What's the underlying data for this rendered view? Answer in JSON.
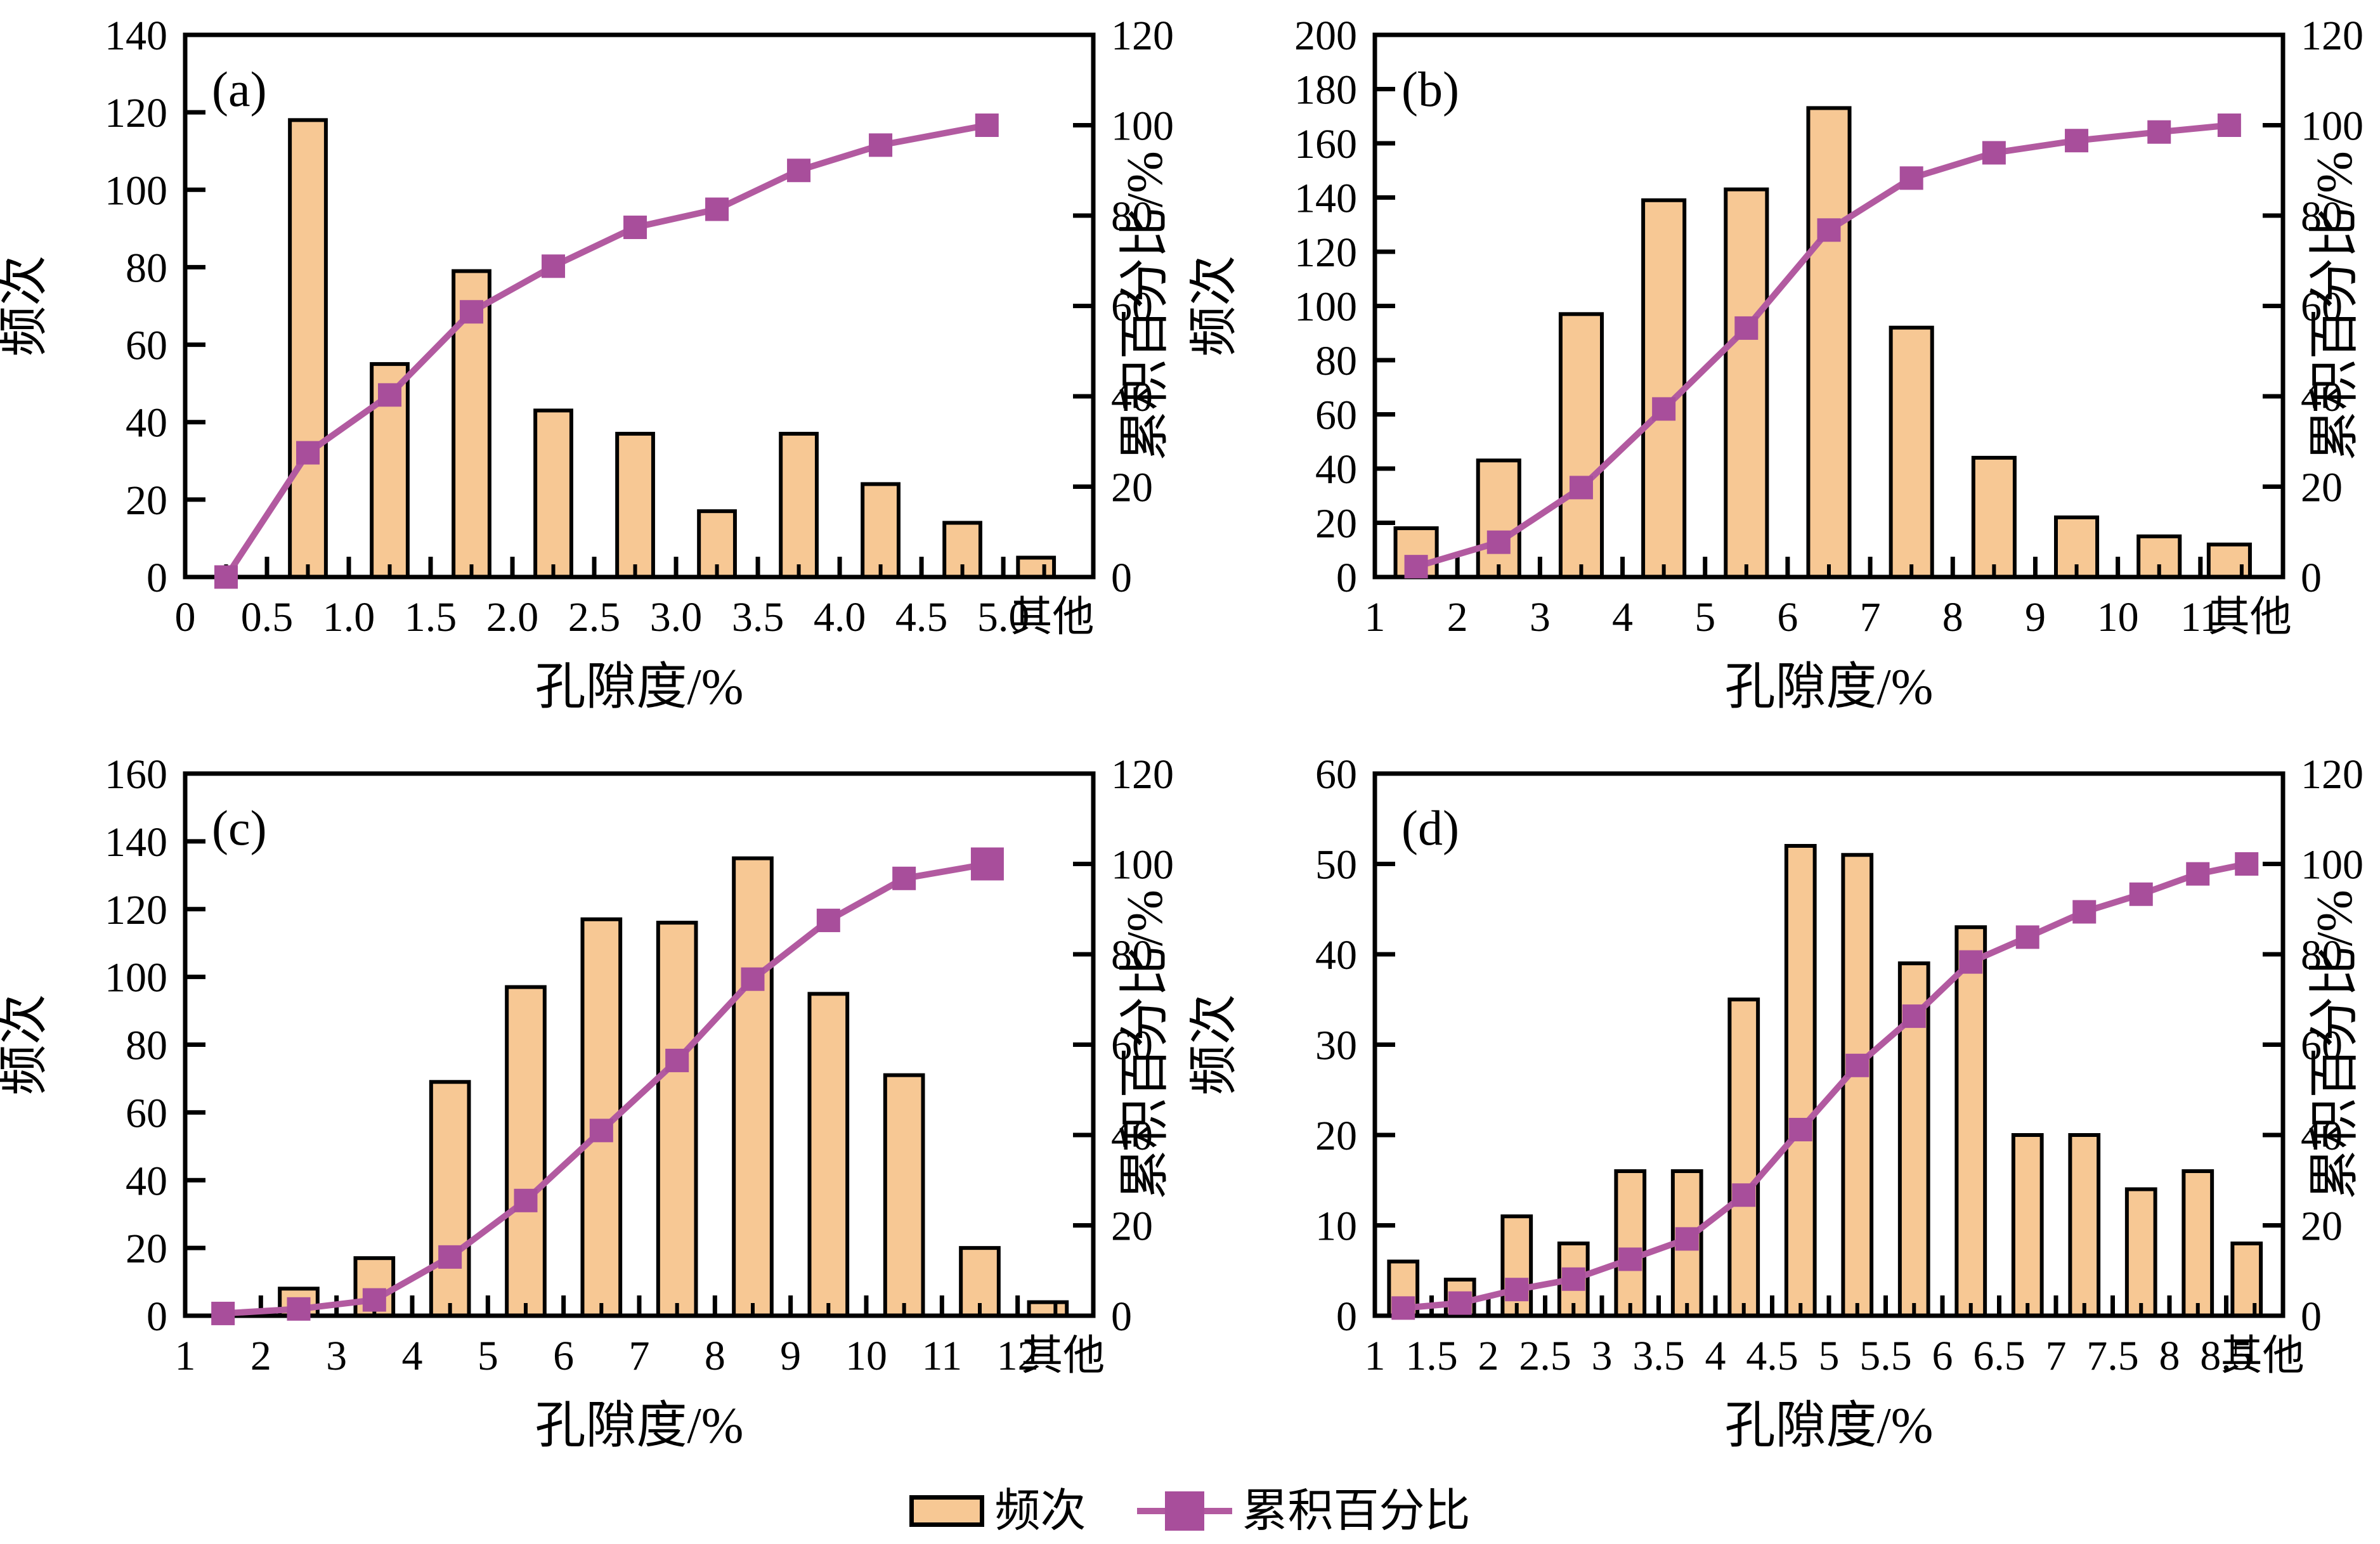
{
  "figure": {
    "background": "#FFFFFF",
    "colors": {
      "bar_fill": "#F7C894",
      "bar_stroke": "#000000",
      "line": "#B25AA0",
      "marker": "#A84E9B",
      "axis": "#000000",
      "text": "#000000"
    },
    "legend": {
      "bar_label": "频次",
      "line_label": "累积百分比"
    }
  },
  "chart_data": [
    {
      "type": "bar",
      "panel_label": "(a)",
      "xlabel": "孔隙度/%",
      "ylabel_left": "频次",
      "ylabel_right": "累积百分比/%",
      "ylim_left": [
        0,
        140
      ],
      "ystep_left": 20,
      "ylim_right": [
        0,
        120
      ],
      "ystep_right": 20,
      "xlim": [
        0,
        5.55
      ],
      "minor_tick_step": 0.25,
      "bar_width": 0.22,
      "xticks": [
        {
          "pos": 0,
          "label": "0"
        },
        {
          "pos": 0.5,
          "label": "0.5"
        },
        {
          "pos": 1.0,
          "label": "1.0"
        },
        {
          "pos": 1.5,
          "label": "1.5"
        },
        {
          "pos": 2.0,
          "label": "2.0"
        },
        {
          "pos": 2.5,
          "label": "2.5"
        },
        {
          "pos": 3.0,
          "label": "3.0"
        },
        {
          "pos": 3.5,
          "label": "3.5"
        },
        {
          "pos": 4.0,
          "label": "4.0"
        },
        {
          "pos": 4.5,
          "label": "4.5"
        },
        {
          "pos": 5.0,
          "label": "5.0"
        },
        {
          "pos": 5.3,
          "label": "其他",
          "tick": false
        }
      ],
      "bars": {
        "x": [
          0.75,
          1.25,
          1.75,
          2.25,
          2.75,
          3.25,
          3.75,
          4.25,
          4.75,
          5.2
        ],
        "values": [
          118,
          55,
          79,
          43,
          37,
          17,
          37,
          24,
          14,
          5
        ]
      },
      "cumulative": {
        "x": [
          0.25,
          0.75,
          1.25,
          1.75,
          2.25,
          2.75,
          3.25,
          3.75,
          4.25,
          4.9
        ],
        "values": [
          0,
          27.5,
          40.3,
          58.7,
          68.8,
          77.4,
          81.4,
          90.0,
          95.6,
          100
        ]
      }
    },
    {
      "type": "bar",
      "panel_label": "(b)",
      "xlabel": "孔隙度/%",
      "ylabel_left": "频次",
      "ylabel_right": "累积百分比/%",
      "ylim_left": [
        0,
        200
      ],
      "ystep_left": 20,
      "ylim_right": [
        0,
        120
      ],
      "ystep_right": 20,
      "xlim": [
        1,
        12.0
      ],
      "minor_tick_step": 0.5,
      "bar_width": 0.5,
      "xticks": [
        {
          "pos": 1,
          "label": "1"
        },
        {
          "pos": 2,
          "label": "2"
        },
        {
          "pos": 3,
          "label": "3"
        },
        {
          "pos": 4,
          "label": "4"
        },
        {
          "pos": 5,
          "label": "5"
        },
        {
          "pos": 6,
          "label": "6"
        },
        {
          "pos": 7,
          "label": "7"
        },
        {
          "pos": 8,
          "label": "8"
        },
        {
          "pos": 9,
          "label": "9"
        },
        {
          "pos": 10,
          "label": "10"
        },
        {
          "pos": 11,
          "label": "11"
        },
        {
          "pos": 11.6,
          "label": "其他",
          "tick": false
        }
      ],
      "bars": {
        "x": [
          1.5,
          2.5,
          3.5,
          4.5,
          5.5,
          6.5,
          7.5,
          8.5,
          9.5,
          10.5,
          11.35
        ],
        "values": [
          18,
          43,
          97,
          139,
          143,
          173,
          92,
          44,
          22,
          15,
          12
        ]
      },
      "cumulative": {
        "x": [
          1.5,
          2.5,
          3.5,
          4.5,
          5.5,
          6.5,
          7.5,
          8.5,
          9.5,
          10.5,
          11.35
        ],
        "values": [
          2.3,
          7.7,
          19.8,
          37.2,
          55.1,
          76.8,
          88.3,
          93.9,
          96.6,
          98.5,
          100
        ]
      }
    },
    {
      "type": "bar",
      "panel_label": "(c)",
      "xlabel": "孔隙度/%",
      "ylabel_left": "频次",
      "ylabel_right": "累积百分比/%",
      "ylim_left": [
        0,
        160
      ],
      "ystep_left": 20,
      "ylim_right": [
        0,
        120
      ],
      "ystep_right": 20,
      "xlim": [
        1,
        13.0
      ],
      "minor_tick_step": 0.5,
      "bar_width": 0.5,
      "xticks": [
        {
          "pos": 1,
          "label": "1"
        },
        {
          "pos": 2,
          "label": "2"
        },
        {
          "pos": 3,
          "label": "3"
        },
        {
          "pos": 4,
          "label": "4"
        },
        {
          "pos": 5,
          "label": "5"
        },
        {
          "pos": 6,
          "label": "6"
        },
        {
          "pos": 7,
          "label": "7"
        },
        {
          "pos": 8,
          "label": "8"
        },
        {
          "pos": 9,
          "label": "9"
        },
        {
          "pos": 10,
          "label": "10"
        },
        {
          "pos": 11,
          "label": "11"
        },
        {
          "pos": 12,
          "label": "12"
        },
        {
          "pos": 12.6,
          "label": "其他",
          "tick": false
        }
      ],
      "bars": {
        "x": [
          2.5,
          3.5,
          4.5,
          5.5,
          6.5,
          7.5,
          8.5,
          9.5,
          10.5,
          11.5,
          12.4
        ],
        "values": [
          8,
          17,
          69,
          97,
          117,
          116,
          135,
          95,
          71,
          20,
          4
        ]
      },
      "cumulative": {
        "x": [
          1.5,
          2.5,
          3.5,
          4.5,
          5.5,
          6.5,
          7.5,
          8.5,
          9.5,
          10.5,
          11.6
        ],
        "values": [
          0.5,
          1.5,
          3.5,
          13,
          25.5,
          41,
          56.5,
          74.5,
          87.5,
          96.8,
          100
        ],
        "last_marker_size": 52
      }
    },
    {
      "type": "bar",
      "panel_label": "(d)",
      "xlabel": "孔隙度/%",
      "ylabel_left": "频次",
      "ylabel_right": "累积百分比/%",
      "ylim_left": [
        0,
        60
      ],
      "ystep_left": 10,
      "ylim_right": [
        0,
        120
      ],
      "ystep_right": 20,
      "xlim": [
        1,
        9.0
      ],
      "minor_tick_step": 0.25,
      "bar_width": 0.25,
      "xticks": [
        {
          "pos": 1,
          "label": "1"
        },
        {
          "pos": 1.5,
          "label": "1.5"
        },
        {
          "pos": 2,
          "label": "2"
        },
        {
          "pos": 2.5,
          "label": "2.5"
        },
        {
          "pos": 3,
          "label": "3"
        },
        {
          "pos": 3.5,
          "label": "3.5"
        },
        {
          "pos": 4,
          "label": "4"
        },
        {
          "pos": 4.5,
          "label": "4.5"
        },
        {
          "pos": 5,
          "label": "5"
        },
        {
          "pos": 5.5,
          "label": "5.5"
        },
        {
          "pos": 6,
          "label": "6"
        },
        {
          "pos": 6.5,
          "label": "6.5"
        },
        {
          "pos": 7,
          "label": "7"
        },
        {
          "pos": 7.5,
          "label": "7.5"
        },
        {
          "pos": 8,
          "label": "8"
        },
        {
          "pos": 8.5,
          "label": "8.5"
        },
        {
          "pos": 8.82,
          "label": "其他",
          "tick": false
        }
      ],
      "bars": {
        "x": [
          1.25,
          1.75,
          2.25,
          2.75,
          3.25,
          3.75,
          4.25,
          4.75,
          5.25,
          5.75,
          6.25,
          6.75,
          7.25,
          7.75,
          8.25,
          8.68
        ],
        "values": [
          6,
          4,
          11,
          8,
          16,
          16,
          35,
          52,
          51,
          39,
          43,
          20,
          20,
          14,
          16,
          8
        ]
      },
      "cumulative": {
        "x": [
          1.25,
          1.75,
          2.25,
          2.75,
          3.25,
          3.75,
          4.25,
          4.75,
          5.25,
          5.75,
          6.25,
          6.75,
          7.25,
          7.75,
          8.25,
          8.68
        ],
        "values": [
          1.7,
          2.8,
          5.8,
          8.1,
          12.5,
          17.0,
          26.7,
          41.2,
          55.4,
          66.3,
          78.3,
          83.8,
          89.4,
          93.3,
          97.8,
          100
        ]
      }
    }
  ]
}
